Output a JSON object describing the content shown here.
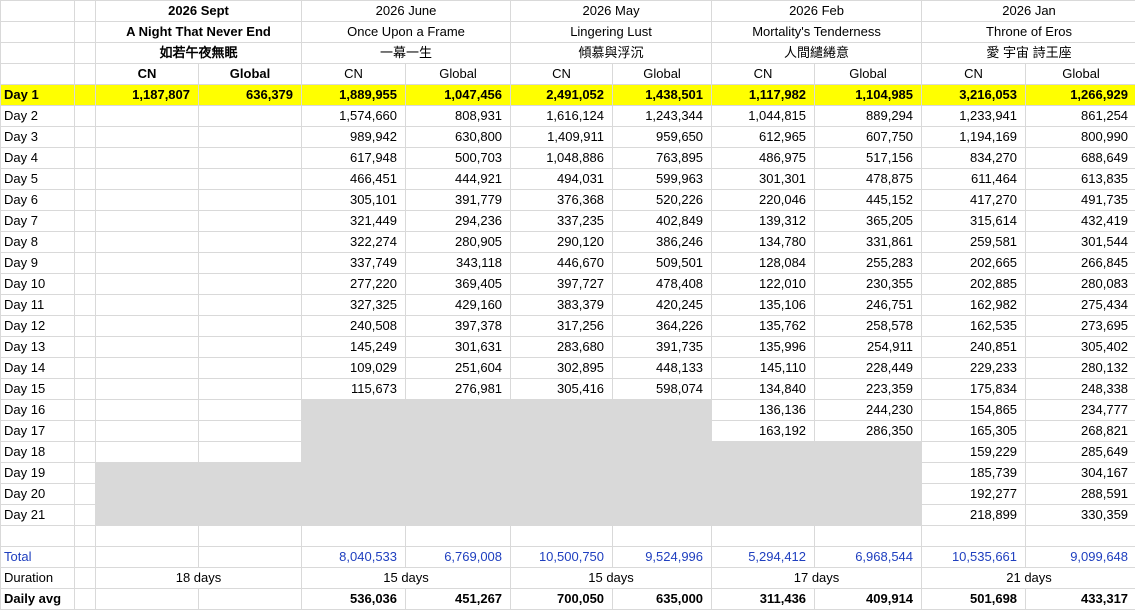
{
  "films": [
    {
      "period": "2026 Sept",
      "title_en": "A Night That Never End",
      "title_cn": "如若午夜無眠",
      "bold_header": true
    },
    {
      "period": "2026 June",
      "title_en": "Once Upon a Frame",
      "title_cn": "一幕一生",
      "bold_header": false
    },
    {
      "period": "2026 May",
      "title_en": "Lingering Lust",
      "title_cn": "傾慕與浮沉",
      "bold_header": false
    },
    {
      "period": "2026 Feb",
      "title_en": "Mortality's Tenderness",
      "title_cn": "人間繾綣意",
      "bold_header": false
    },
    {
      "period": "2026 Jan",
      "title_en": "Throne of Eros",
      "title_cn": "愛 宇宙 詩王座",
      "bold_header": false
    }
  ],
  "col_labels": {
    "cn": "CN",
    "global": "Global"
  },
  "days": [
    {
      "label": "Day 1",
      "vals": [
        "1,187,807",
        "636,379",
        "1,889,955",
        "1,047,456",
        "2,491,052",
        "1,438,501",
        "1,117,982",
        "1,104,985",
        "3,216,053",
        "1,266,929"
      ]
    },
    {
      "label": "Day 2",
      "vals": [
        "",
        "",
        "1,574,660",
        "808,931",
        "1,616,124",
        "1,243,344",
        "1,044,815",
        "889,294",
        "1,233,941",
        "861,254"
      ]
    },
    {
      "label": "Day 3",
      "vals": [
        "",
        "",
        "989,942",
        "630,800",
        "1,409,911",
        "959,650",
        "612,965",
        "607,750",
        "1,194,169",
        "800,990"
      ]
    },
    {
      "label": "Day 4",
      "vals": [
        "",
        "",
        "617,948",
        "500,703",
        "1,048,886",
        "763,895",
        "486,975",
        "517,156",
        "834,270",
        "688,649"
      ]
    },
    {
      "label": "Day 5",
      "vals": [
        "",
        "",
        "466,451",
        "444,921",
        "494,031",
        "599,963",
        "301,301",
        "478,875",
        "611,464",
        "613,835"
      ]
    },
    {
      "label": "Day 6",
      "vals": [
        "",
        "",
        "305,101",
        "391,779",
        "376,368",
        "520,226",
        "220,046",
        "445,152",
        "417,270",
        "491,735"
      ]
    },
    {
      "label": "Day 7",
      "vals": [
        "",
        "",
        "321,449",
        "294,236",
        "337,235",
        "402,849",
        "139,312",
        "365,205",
        "315,614",
        "432,419"
      ]
    },
    {
      "label": "Day 8",
      "vals": [
        "",
        "",
        "322,274",
        "280,905",
        "290,120",
        "386,246",
        "134,780",
        "331,861",
        "259,581",
        "301,544"
      ]
    },
    {
      "label": "Day 9",
      "vals": [
        "",
        "",
        "337,749",
        "343,118",
        "446,670",
        "509,501",
        "128,084",
        "255,283",
        "202,665",
        "266,845"
      ]
    },
    {
      "label": "Day 10",
      "vals": [
        "",
        "",
        "277,220",
        "369,405",
        "397,727",
        "478,408",
        "122,010",
        "230,355",
        "202,885",
        "280,083"
      ]
    },
    {
      "label": "Day 11",
      "vals": [
        "",
        "",
        "327,325",
        "429,160",
        "383,379",
        "420,245",
        "135,106",
        "246,751",
        "162,982",
        "275,434"
      ]
    },
    {
      "label": "Day 12",
      "vals": [
        "",
        "",
        "240,508",
        "397,378",
        "317,256",
        "364,226",
        "135,762",
        "258,578",
        "162,535",
        "273,695"
      ]
    },
    {
      "label": "Day 13",
      "vals": [
        "",
        "",
        "145,249",
        "301,631",
        "283,680",
        "391,735",
        "135,996",
        "254,911",
        "240,851",
        "305,402"
      ]
    },
    {
      "label": "Day 14",
      "vals": [
        "",
        "",
        "109,029",
        "251,604",
        "302,895",
        "448,133",
        "145,110",
        "228,449",
        "229,233",
        "280,132"
      ]
    },
    {
      "label": "Day 15",
      "vals": [
        "",
        "",
        "115,673",
        "276,981",
        "305,416",
        "598,074",
        "134,840",
        "223,359",
        "175,834",
        "248,338"
      ]
    },
    {
      "label": "Day 16",
      "vals": [
        "",
        "",
        "",
        "",
        "",
        "",
        "136,136",
        "244,230",
        "154,865",
        "234,777"
      ]
    },
    {
      "label": "Day 17",
      "vals": [
        "",
        "",
        "",
        "",
        "",
        "",
        "163,192",
        "286,350",
        "165,305",
        "268,821"
      ]
    },
    {
      "label": "Day 18",
      "vals": [
        "",
        "",
        "",
        "",
        "",
        "",
        "",
        "",
        "159,229",
        "285,649"
      ]
    },
    {
      "label": "Day 19",
      "vals": [
        "",
        "",
        "",
        "",
        "",
        "",
        "",
        "",
        "185,739",
        "304,167"
      ]
    },
    {
      "label": "Day 20",
      "vals": [
        "",
        "",
        "",
        "",
        "",
        "",
        "",
        "",
        "192,277",
        "288,591"
      ]
    },
    {
      "label": "Day 21",
      "vals": [
        "",
        "",
        "",
        "",
        "",
        "",
        "",
        "",
        "218,899",
        "330,359"
      ]
    }
  ],
  "total": {
    "label": "Total",
    "vals": [
      "",
      "",
      "8,040,533",
      "6,769,008",
      "10,500,750",
      "9,524,996",
      "5,294,412",
      "6,968,544",
      "10,535,661",
      "9,099,648"
    ]
  },
  "duration": {
    "label": "Duration",
    "vals": [
      "18 days",
      "15 days",
      "15 days",
      "17 days",
      "21 days"
    ]
  },
  "daily_avg": {
    "label": "Daily avg",
    "vals": [
      "",
      "",
      "536,036",
      "451,267",
      "700,050",
      "635,000",
      "311,436",
      "409,914",
      "501,698",
      "433,317"
    ]
  },
  "colors": {
    "highlight": "#ffff00",
    "total_text": "#1f3fbf",
    "gray_cell": "#d9d9d9",
    "grid": "#d9d9d9"
  }
}
